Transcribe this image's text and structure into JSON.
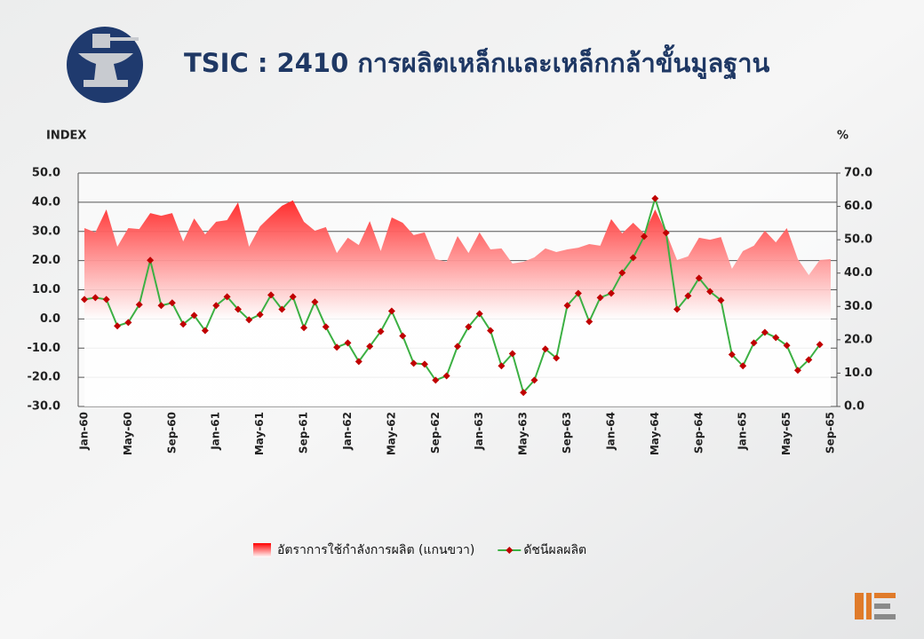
{
  "chart_data": {
    "type": "combo",
    "title": "TSIC : 2410 การผลิตเหล็กและเหล็กกล้าขั้นมูลฐาน",
    "ylabel": "INDEX",
    "y2label": "%",
    "categories": [
      "Jan-60",
      null,
      null,
      null,
      "May-60",
      null,
      null,
      null,
      "Sep-60",
      null,
      null,
      null,
      "Jan-61",
      null,
      null,
      null,
      "May-61",
      null,
      null,
      null,
      "Sep-61",
      null,
      null,
      null,
      "Jan-62",
      null,
      null,
      null,
      "May-62",
      null,
      null,
      null,
      "Sep-62",
      null,
      null,
      null,
      "Jan-63",
      null,
      null,
      null,
      "May-63",
      null,
      null,
      null,
      "Sep-63",
      null,
      null,
      null,
      "Jan-64",
      null,
      null,
      null,
      "May-64",
      null,
      null,
      null,
      "Sep-64",
      null,
      null,
      null,
      "Jan-65",
      null,
      null,
      null,
      "May-65",
      null,
      null,
      null,
      "Sep-65"
    ],
    "series": [
      {
        "name": "อัตราการใช้กำลังการผลิต (แกนขวา)",
        "type": "area",
        "axis": "y2",
        "color": "#ff0000",
        "values": [
          53.5,
          52.2,
          59.1,
          47.9,
          53.5,
          53.2,
          58.0,
          57.2,
          58.0,
          49.5,
          56.4,
          51.6,
          55.4,
          55.9,
          61.2,
          47.9,
          54.0,
          57.2,
          60.2,
          61.8,
          55.4,
          52.7,
          53.8,
          46.0,
          50.6,
          48.4,
          55.6,
          46.6,
          56.7,
          55.1,
          51.4,
          52.2,
          44.2,
          43.4,
          51.1,
          46.0,
          52.2,
          47.1,
          47.4,
          42.9,
          43.4,
          44.7,
          47.4,
          46.3,
          47.1,
          47.6,
          48.7,
          48.2,
          56.2,
          51.9,
          55.1,
          51.9,
          59.1,
          52.2,
          43.9,
          45.0,
          50.6,
          50.0,
          50.8,
          41.3,
          46.6,
          48.2,
          52.7,
          49.2,
          53.5,
          44.2,
          39.4,
          43.9,
          44.2
        ]
      },
      {
        "name": "ดัชนีผลผลิต",
        "type": "line",
        "color": "#3cb043",
        "marker_color": "#c00000",
        "values": [
          6.7,
          7.3,
          6.7,
          -2.4,
          -1.2,
          4.9,
          20.1,
          4.6,
          5.5,
          -1.8,
          1.2,
          -4.0,
          4.6,
          7.6,
          3.3,
          -0.3,
          1.5,
          8.2,
          3.3,
          7.6,
          -3.0,
          5.8,
          -2.7,
          -9.7,
          -8.2,
          -14.6,
          -9.4,
          -4.3,
          2.7,
          -5.8,
          -15.2,
          -15.5,
          -21.0,
          -19.5,
          -9.4,
          -2.7,
          1.8,
          -4.0,
          -16.1,
          -11.9,
          -25.2,
          -21.0,
          -10.3,
          -13.4,
          4.6,
          8.8,
          -0.9,
          7.3,
          8.8,
          15.8,
          21.0,
          28.3,
          41.3,
          29.5,
          3.3,
          7.9,
          14.0,
          9.4,
          6.4,
          -12.2,
          -16.1,
          -8.2,
          -4.6,
          -6.4,
          -9.1,
          -17.6,
          -14.0,
          -8.8,
          null
        ]
      }
    ],
    "ylim": [
      -30,
      50
    ],
    "yticks": [
      {
        "value": -30,
        "label": "-30.0"
      },
      {
        "value": -20,
        "label": "-20.0"
      },
      {
        "value": -10,
        "label": "-10.0"
      },
      {
        "value": 0,
        "label": "0.0"
      },
      {
        "value": 10,
        "label": "10.0"
      },
      {
        "value": 20,
        "label": "20.0"
      },
      {
        "value": 30,
        "label": "30.0"
      },
      {
        "value": 40,
        "label": "40.0"
      },
      {
        "value": 50,
        "label": "50.0"
      }
    ],
    "y2lim": [
      0,
      70
    ],
    "y2ticks": [
      {
        "value": 0,
        "label": "0.0"
      },
      {
        "value": 10,
        "label": "10.0"
      },
      {
        "value": 20,
        "label": "20.0"
      },
      {
        "value": 30,
        "label": "30.0"
      },
      {
        "value": 40,
        "label": "40.0"
      },
      {
        "value": 50,
        "label": "50.0"
      },
      {
        "value": 60,
        "label": "60.0"
      },
      {
        "value": 70,
        "label": "70.0"
      }
    ],
    "grid": true,
    "legend": "bottom"
  }
}
